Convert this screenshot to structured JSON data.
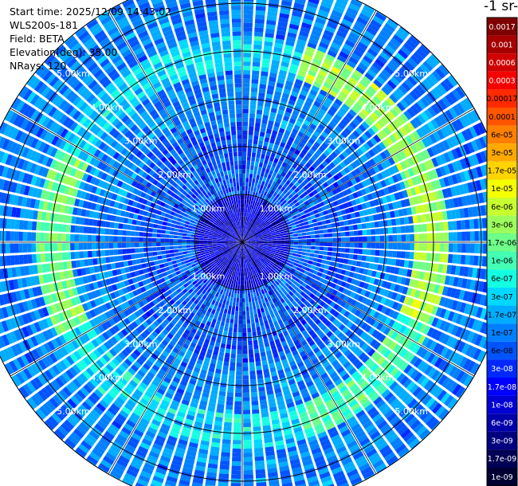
{
  "info": {
    "start_time": "Start time: 2025/12/09 14:43:02",
    "instrument": "WLS200s-181",
    "field": "Field: BETA",
    "elevation": "Elevation(deg): 35.00",
    "nrays": "NRays: 120"
  },
  "colorbar": {
    "title": "-1 sr-",
    "labels": [
      "0.0017",
      "0.001",
      "0.0006",
      "0.0003",
      "0.00017",
      "0.0001",
      "6e-05",
      "3e-05",
      "1.7e-05",
      "1e-05",
      "6e-06",
      "3e-06",
      "1.7e-06",
      "1e-06",
      "6e-07",
      "3e-07",
      "1.7e-07",
      "1e-07",
      "6e-08",
      "3e-08",
      "1.7e-08",
      "1e-08",
      "6e-09",
      "3e-09",
      "1.7e-09",
      "1e-09"
    ],
    "colors": [
      "#7f0000",
      "#a60000",
      "#cf0000",
      "#f50000",
      "#ff2a00",
      "#ff5500",
      "#ff7f00",
      "#ffa900",
      "#ffd400",
      "#f5ff00",
      "#c8ff2e",
      "#9cff5a",
      "#6eff88",
      "#42ffb4",
      "#14ffe2",
      "#00d8ff",
      "#00acff",
      "#0080ff",
      "#0054ff",
      "#0028ff",
      "#0000ff",
      "#0000d4",
      "#0000aa",
      "#00007f",
      "#000054",
      "#000033"
    ]
  },
  "range_rings": {
    "labels": [
      "1.00km",
      "2.00km",
      "3.00km",
      "4.00km",
      "5.00km"
    ]
  },
  "chart_data": {
    "type": "heatmap",
    "projection": "polar PPI",
    "nrays": 120,
    "range_km": [
      0,
      5.6
    ],
    "ring_km": [
      1,
      2,
      3,
      4,
      5
    ],
    "bands": [
      {
        "name": "near",
        "range_km": [
          0,
          1.0
        ],
        "value": "1e-08"
      },
      {
        "name": "middle",
        "range_km": [
          1.0,
          2.5
        ],
        "value": "6e-08"
      },
      {
        "name": "outer-ring",
        "range_km": [
          3.6,
          4.3
        ],
        "value": "1.7e-06"
      },
      {
        "name": "far",
        "range_km": [
          4.3,
          5.6
        ],
        "value": "1e-07"
      }
    ],
    "peak_sectors": [
      {
        "direction": "east",
        "value": "3e-06"
      },
      {
        "direction": "west",
        "value": "1.7e-06"
      },
      {
        "direction": "north-east",
        "value": "3e-06"
      },
      {
        "direction": "south-east",
        "value": "1e-06"
      }
    ]
  }
}
